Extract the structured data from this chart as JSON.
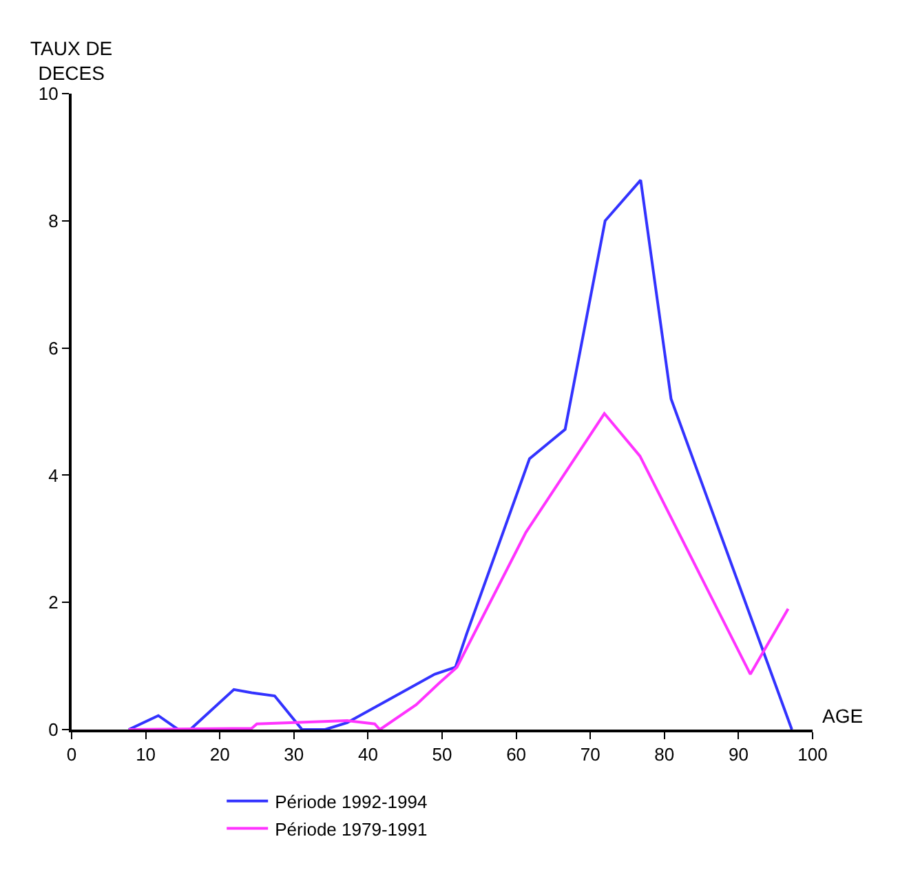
{
  "chart_data": {
    "type": "line",
    "xlabel": "AGE",
    "ylabel": "TAUX DE\nDECES",
    "xlim": [
      0,
      100
    ],
    "xticks": [
      0,
      10,
      20,
      30,
      40,
      50,
      60,
      70,
      80,
      90,
      100
    ],
    "ylim": [
      0,
      10
    ],
    "yticks": [
      0,
      2,
      4,
      6,
      8,
      10
    ],
    "legend": "bottom",
    "marker": "none",
    "line_style": "solid",
    "series": [
      {
        "name": "Période 1992-1994",
        "color": "#3333ff",
        "x": [
          7.7,
          11.7,
          14.4,
          16,
          21.9,
          24.3,
          27.4,
          31.1,
          34.2,
          37.2,
          49,
          51.8,
          53.3,
          61.8,
          64.3,
          66.6,
          72,
          76.8,
          80.9,
          97.2
        ],
        "values": [
          0,
          0.22,
          0,
          0,
          0.63,
          0.58,
          0.53,
          0,
          0,
          0.11,
          0.87,
          0.98,
          1.5,
          4.26,
          4.5,
          4.72,
          8.0,
          8.64,
          5.2,
          0
        ]
      },
      {
        "name": "Période 1979-1991",
        "color": "#ff33ff",
        "x": [
          7.7,
          24.3,
          25,
          37.2,
          40.9,
          41.6,
          46.5,
          49.6,
          52,
          61.3,
          71.9,
          76.7,
          91.6,
          96.7
        ],
        "values": [
          0,
          0.02,
          0.09,
          0.14,
          0.09,
          0,
          0.39,
          0.73,
          0.98,
          3.1,
          4.97,
          4.3,
          0.87,
          1.9
        ]
      }
    ]
  }
}
